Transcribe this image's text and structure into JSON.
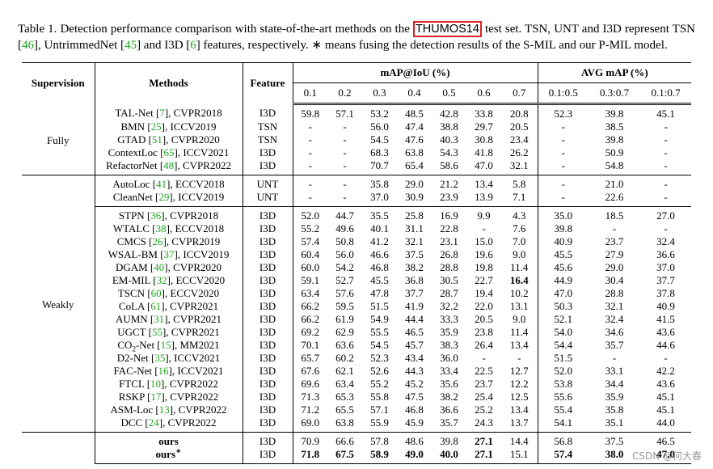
{
  "caption": [
    [
      "Table 1.  Detection performance comparison with state-of-the-art methods on the ",
      ""
    ],
    [
      "THUMOS14",
      "box"
    ],
    [
      " test set.  TSN, UNT and I3D represent TSN [",
      ""
    ],
    [
      "46",
      "cite"
    ],
    [
      "], UntrimmedNet [",
      ""
    ],
    [
      "45",
      "cite"
    ],
    [
      "] and I3D [",
      ""
    ],
    [
      "6",
      "cite"
    ],
    [
      "] features, respectively. ∗ means fusing the detection results of the S-MIL and our P-MIL model.",
      ""
    ]
  ],
  "table": {
    "header": {
      "supervision": "Supervision",
      "methods": "Methods",
      "feature": "Feature",
      "map": "mAP@IoU (%)",
      "avg": "AVG mAP (%)",
      "thresholds": [
        "0.1",
        "0.2",
        "0.3",
        "0.4",
        "0.5",
        "0.6",
        "0.7"
      ],
      "ranges": [
        "0.1:0.5",
        "0.3:0.7",
        "0.1:0.7"
      ]
    },
    "groups": [
      {
        "supervision": "Fully",
        "blocks": [
          [
            {
              "method": [
                [
                  "TAL-Net [",
                  ""
                ],
                [
                  "7",
                  "cite"
                ],
                [
                  "], CVPR2018",
                  ""
                ]
              ],
              "feature": "I3D",
              "cells": [
                "59.8",
                "57.1",
                "53.2",
                "48.5",
                "42.8",
                "33.8",
                "20.8",
                "52.3",
                "39.8",
                "45.1"
              ]
            },
            {
              "method": [
                [
                  "BMN [",
                  ""
                ],
                [
                  "25",
                  "cite"
                ],
                [
                  "], ICCV2019",
                  ""
                ]
              ],
              "feature": "TSN",
              "cells": [
                "-",
                "-",
                "56.0",
                "47.4",
                "38.8",
                "29.7",
                "20.5",
                "-",
                "38.5",
                "-"
              ]
            },
            {
              "method": [
                [
                  "GTAD [",
                  ""
                ],
                [
                  "51",
                  "cite"
                ],
                [
                  "], CVPR2020",
                  ""
                ]
              ],
              "feature": "TSN",
              "cells": [
                "-",
                "-",
                "54.5",
                "47.6",
                "40.3",
                "30.8",
                "23.4",
                "-",
                "39.8",
                "-"
              ]
            },
            {
              "method": [
                [
                  "ContextLoc [",
                  ""
                ],
                [
                  "65",
                  "cite"
                ],
                [
                  "], ICCV2021",
                  ""
                ]
              ],
              "feature": "I3D",
              "cells": [
                "-",
                "-",
                "68.3",
                "63.8",
                "54.3",
                "41.8",
                "26.2",
                "-",
                "50.9",
                "-"
              ]
            },
            {
              "method": [
                [
                  "RefactorNet [",
                  ""
                ],
                [
                  "48",
                  "cite"
                ],
                [
                  "], CVPR2022",
                  ""
                ]
              ],
              "feature": "I3D",
              "cells": [
                "-",
                "-",
                "70.7",
                "65.4",
                "58.6",
                "47.0",
                "32.1",
                "-",
                "54.8",
                "-"
              ]
            }
          ]
        ]
      },
      {
        "supervision": "Weakly",
        "blocks": [
          [
            {
              "method": [
                [
                  "AutoLoc [",
                  ""
                ],
                [
                  "41",
                  "cite"
                ],
                [
                  "], ECCV2018",
                  ""
                ]
              ],
              "feature": "UNT",
              "cells": [
                "-",
                "-",
                "35.8",
                "29.0",
                "21.2",
                "13.4",
                "5.8",
                "-",
                "21.0",
                "-"
              ]
            },
            {
              "method": [
                [
                  "CleanNet [",
                  ""
                ],
                [
                  "29",
                  "cite"
                ],
                [
                  "], ICCV2019",
                  ""
                ]
              ],
              "feature": "UNT",
              "cells": [
                "-",
                "-",
                "37.0",
                "30.9",
                "23.9",
                "13.9",
                "7.1",
                "-",
                "22.6",
                "-"
              ]
            }
          ],
          [
            {
              "method": [
                [
                  "STPN [",
                  ""
                ],
                [
                  "36",
                  "cite"
                ],
                [
                  "], CVPR2018",
                  ""
                ]
              ],
              "feature": "I3D",
              "cells": [
                "52.0",
                "44.7",
                "35.5",
                "25.8",
                "16.9",
                "9.9",
                "4.3",
                "35.0",
                "18.5",
                "27.0"
              ]
            },
            {
              "method": [
                [
                  "WTALC [",
                  ""
                ],
                [
                  "38",
                  "cite"
                ],
                [
                  "], ECCV2018",
                  ""
                ]
              ],
              "feature": "I3D",
              "cells": [
                "55.2",
                "49.6",
                "40.1",
                "31.1",
                "22.8",
                "-",
                "7.6",
                "39.8",
                "-",
                "-"
              ]
            },
            {
              "method": [
                [
                  "CMCS [",
                  ""
                ],
                [
                  "26",
                  "cite"
                ],
                [
                  "], CVPR2019",
                  ""
                ]
              ],
              "feature": "I3D",
              "cells": [
                "57.4",
                "50.8",
                "41.2",
                "32.1",
                "23.1",
                "15.0",
                "7.0",
                "40.9",
                "23.7",
                "32.4"
              ]
            },
            {
              "method": [
                [
                  "WSAL-BM [",
                  ""
                ],
                [
                  "37",
                  "cite"
                ],
                [
                  "], ICCV2019",
                  ""
                ]
              ],
              "feature": "I3D",
              "cells": [
                "60.4",
                "56.0",
                "46.6",
                "37.5",
                "26.8",
                "19.6",
                "9.0",
                "45.5",
                "27.9",
                "36.6"
              ]
            },
            {
              "method": [
                [
                  "DGAM [",
                  ""
                ],
                [
                  "40",
                  "cite"
                ],
                [
                  "], CVPR2020",
                  ""
                ]
              ],
              "feature": "I3D",
              "cells": [
                "60.0",
                "54.2",
                "46.8",
                "38.2",
                "28.8",
                "19.8",
                "11.4",
                "45.6",
                "29.0",
                "37.0"
              ]
            },
            {
              "method": [
                [
                  "EM-MIL [",
                  ""
                ],
                [
                  "32",
                  "cite"
                ],
                [
                  "], ECCV2020",
                  ""
                ]
              ],
              "feature": "I3D",
              "cells": [
                "59.1",
                "52.7",
                "45.5",
                "36.8",
                "30.5",
                "22.7",
                "16.4",
                "44.9",
                "30.4",
                "37.7"
              ],
              "bold": [
                6
              ]
            },
            {
              "method": [
                [
                  "TSCN [",
                  ""
                ],
                [
                  "60",
                  "cite"
                ],
                [
                  "], ECCV2020",
                  ""
                ]
              ],
              "feature": "I3D",
              "cells": [
                "63.4",
                "57.6",
                "47.8",
                "37.7",
                "28.7",
                "19.4",
                "10.2",
                "47.0",
                "28.8",
                "37.8"
              ]
            },
            {
              "method": [
                [
                  "CoLA [",
                  ""
                ],
                [
                  "61",
                  "cite"
                ],
                [
                  "], CVPR2021",
                  ""
                ]
              ],
              "feature": "I3D",
              "cells": [
                "66.2",
                "59.5",
                "51.5",
                "41.9",
                "32.2",
                "22.0",
                "13.1",
                "50.3",
                "32.1",
                "40.9"
              ]
            },
            {
              "method": [
                [
                  "AUMN [",
                  ""
                ],
                [
                  "31",
                  "cite"
                ],
                [
                  "], CVPR2021",
                  ""
                ]
              ],
              "feature": "I3D",
              "cells": [
                "66.2",
                "61.9",
                "54.9",
                "44.4",
                "33.3",
                "20.5",
                "9.0",
                "52.1",
                "32.4",
                "41.5"
              ]
            },
            {
              "method": [
                [
                  "UGCT [",
                  ""
                ],
                [
                  "55",
                  "cite"
                ],
                [
                  "], CVPR2021",
                  ""
                ]
              ],
              "feature": "I3D",
              "cells": [
                "69.2",
                "62.9",
                "55.5",
                "46.5",
                "35.9",
                "23.8",
                "11.4",
                "54.0",
                "34.6",
                "43.6"
              ]
            },
            {
              "method": [
                [
                  "CO",
                  ""
                ],
                [
                  "2",
                  "sub"
                ],
                [
                  "-Net [",
                  ""
                ],
                [
                  "15",
                  "cite"
                ],
                [
                  "], MM2021",
                  ""
                ]
              ],
              "feature": "I3D",
              "cells": [
                "70.1",
                "63.6",
                "54.5",
                "45.7",
                "38.3",
                "26.4",
                "13.4",
                "54.4",
                "35.7",
                "44.6"
              ]
            },
            {
              "method": [
                [
                  "D2-Net [",
                  ""
                ],
                [
                  "35",
                  "cite"
                ],
                [
                  "], ICCV2021",
                  ""
                ]
              ],
              "feature": "I3D",
              "cells": [
                "65.7",
                "60.2",
                "52.3",
                "43.4",
                "36.0",
                "-",
                "-",
                "51.5",
                "-",
                "-"
              ]
            },
            {
              "method": [
                [
                  "FAC-Net [",
                  ""
                ],
                [
                  "16",
                  "cite"
                ],
                [
                  "], ICCV2021",
                  ""
                ]
              ],
              "feature": "I3D",
              "cells": [
                "67.6",
                "62.1",
                "52.6",
                "44.3",
                "33.4",
                "22.5",
                "12.7",
                "52.0",
                "33.1",
                "42.2"
              ]
            },
            {
              "method": [
                [
                  "FTCL [",
                  ""
                ],
                [
                  "10",
                  "cite"
                ],
                [
                  "], CVPR2022",
                  ""
                ]
              ],
              "feature": "I3D",
              "cells": [
                "69.6",
                "63.4",
                "55.2",
                "45.2",
                "35.6",
                "23.7",
                "12.2",
                "53.8",
                "34.4",
                "43.6"
              ]
            },
            {
              "method": [
                [
                  "RSKP [",
                  ""
                ],
                [
                  "17",
                  "cite"
                ],
                [
                  "], CVPR2022",
                  ""
                ]
              ],
              "feature": "I3D",
              "cells": [
                "71.3",
                "65.3",
                "55.8",
                "47.5",
                "38.2",
                "25.4",
                "12.5",
                "55.6",
                "35.9",
                "45.1"
              ]
            },
            {
              "method": [
                [
                  "ASM-Loc [",
                  ""
                ],
                [
                  "13",
                  "cite"
                ],
                [
                  "], CVPR2022",
                  ""
                ]
              ],
              "feature": "I3D",
              "cells": [
                "71.2",
                "65.5",
                "57.1",
                "46.8",
                "36.6",
                "25.2",
                "13.4",
                "55.4",
                "35.8",
                "45.1"
              ]
            },
            {
              "method": [
                [
                  "DCC [",
                  ""
                ],
                [
                  "24",
                  "cite"
                ],
                [
                  "], CVPR2022",
                  ""
                ]
              ],
              "feature": "I3D",
              "cells": [
                "69.0",
                "63.8",
                "55.9",
                "45.9",
                "35.7",
                "24.3",
                "13.7",
                "54.1",
                "35.1",
                "44.0"
              ]
            }
          ]
        ]
      },
      {
        "blocks": [
          [
            {
              "method": [
                [
                  "ours",
                  "b"
                ]
              ],
              "feature": "I3D",
              "cells": [
                "70.9",
                "66.6",
                "57.8",
                "48.6",
                "39.8",
                "27.1",
                "14.4",
                "56.8",
                "37.5",
                "46.5"
              ],
              "bold": [
                5
              ]
            },
            {
              "method": [
                [
                  "ours",
                  "b"
                ],
                [
                  "∗",
                  "sup"
                ]
              ],
              "feature": "I3D",
              "cells": [
                "71.8",
                "67.5",
                "58.9",
                "49.0",
                "40.0",
                "27.1",
                "15.1",
                "57.4",
                "38.0",
                "47.0"
              ],
              "bold": [
                0,
                1,
                2,
                3,
                4,
                5,
                7,
                8,
                9
              ]
            }
          ]
        ]
      }
    ]
  },
  "watermark": "CSDN @何大春"
}
